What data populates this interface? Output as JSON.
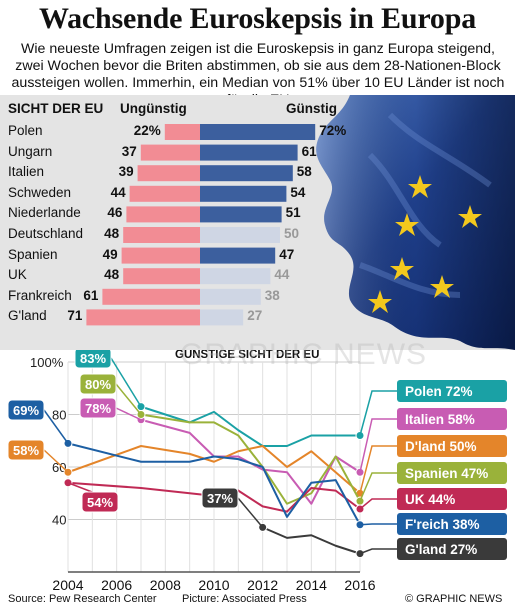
{
  "title": "Wachsende Euroskepsis in Europa",
  "subtitle": "Wie neueste Umfragen zeigen ist die Euroskepsis in ganz Europa steigend, zwei Wochen bevor die Briten abstimmen, ob sie aus dem 28-Nationen-Block aussteigen wollen. Immerhin, ein Median von 51% über 10 EU Länder ist noch für die EU",
  "watermark": "GRAPHIC NEWS",
  "footer": {
    "source": "Source: Pew Research Center",
    "picture": "Picture: Associated Press",
    "copyright": "© GRAPHIC NEWS"
  },
  "colors": {
    "unfavourable": "#f28c94",
    "favourable": "#3c5f9e",
    "favourable_faded": "#cfd6e4",
    "panel_bg": "#e4e4e4"
  },
  "chart_data": [
    {
      "type": "bar",
      "header": "SICHT DER EU",
      "series": [
        {
          "name": "Ungünstig",
          "values": [
            22,
            37,
            39,
            44,
            46,
            48,
            49,
            48,
            61,
            71
          ],
          "labels": [
            "22%",
            "37",
            "39",
            "44",
            "46",
            "48",
            "49",
            "48",
            "61",
            "71"
          ]
        },
        {
          "name": "Günstig",
          "values": [
            72,
            61,
            58,
            54,
            51,
            50,
            47,
            44,
            38,
            27
          ],
          "labels": [
            "72%",
            "61",
            "58",
            "54",
            "51",
            "50",
            "47",
            "44",
            "38",
            "27"
          ]
        }
      ],
      "categories": [
        "Polen",
        "Ungarn",
        "Italien",
        "Schweden",
        "Niederlande",
        "Deutschland",
        "Spanien",
        "UK",
        "Frankreich",
        "G'land"
      ],
      "favourable_faded": [
        false,
        false,
        false,
        false,
        false,
        true,
        false,
        true,
        true,
        true
      ]
    },
    {
      "type": "line",
      "title": "GÜNSTIGE SICHT DER EU",
      "xlim": [
        2004,
        2016
      ],
      "ylim": [
        20,
        100
      ],
      "x_ticks": [
        "2004",
        "2006",
        "2008",
        "2010",
        "2012",
        "2014",
        "2016"
      ],
      "y_ticks": [
        "100%",
        "80",
        "60",
        "40"
      ],
      "grid": true,
      "series": [
        {
          "name": "Polen 72%",
          "color": "#1aa1a5",
          "x": [
            2007,
            2009,
            2010,
            2011,
            2012,
            2013,
            2014,
            2015,
            2016
          ],
          "y": [
            83,
            77,
            81,
            74,
            68,
            68,
            72,
            72,
            72
          ],
          "start_label": "83%"
        },
        {
          "name": "Italien 58%",
          "color": "#c85cb3",
          "x": [
            2007,
            2009,
            2010,
            2011,
            2012,
            2013,
            2014,
            2015,
            2016
          ],
          "y": [
            78,
            73,
            64,
            64,
            59,
            58,
            46,
            64,
            58
          ],
          "start_label": "78%"
        },
        {
          "name": "D'land 50%",
          "color": "#e4852a",
          "x": [
            2004,
            2007,
            2009,
            2010,
            2011,
            2012,
            2013,
            2014,
            2015,
            2016
          ],
          "y": [
            58,
            68,
            65,
            62,
            66,
            68,
            60,
            66,
            58,
            50
          ],
          "start_label": "58%"
        },
        {
          "name": "Spanien 47%",
          "color": "#9ab23a",
          "x": [
            2007,
            2009,
            2010,
            2011,
            2012,
            2013,
            2014,
            2015,
            2016
          ],
          "y": [
            80,
            77,
            77,
            72,
            60,
            46,
            50,
            64,
            47
          ],
          "start_label": "80%"
        },
        {
          "name": "UK 44%",
          "color": "#c02a55",
          "x": [
            2004,
            2007,
            2009,
            2010,
            2011,
            2012,
            2013,
            2014,
            2015,
            2016
          ],
          "y": [
            54,
            52,
            50,
            49,
            51,
            45,
            43,
            52,
            51,
            44
          ],
          "start_label": "54%"
        },
        {
          "name": "F'reich 38%",
          "color": "#1d5fa3",
          "x": [
            2004,
            2007,
            2009,
            2010,
            2011,
            2012,
            2013,
            2014,
            2015,
            2016
          ],
          "y": [
            69,
            62,
            62,
            64,
            63,
            60,
            41,
            54,
            55,
            38
          ],
          "start_label": "69%"
        },
        {
          "name": "G'land 27%",
          "color": "#3a3a3a",
          "x": [
            2012,
            2013,
            2014,
            2015,
            2016
          ],
          "y": [
            37,
            33,
            34,
            30,
            27
          ],
          "start_label": "37%"
        }
      ]
    }
  ]
}
